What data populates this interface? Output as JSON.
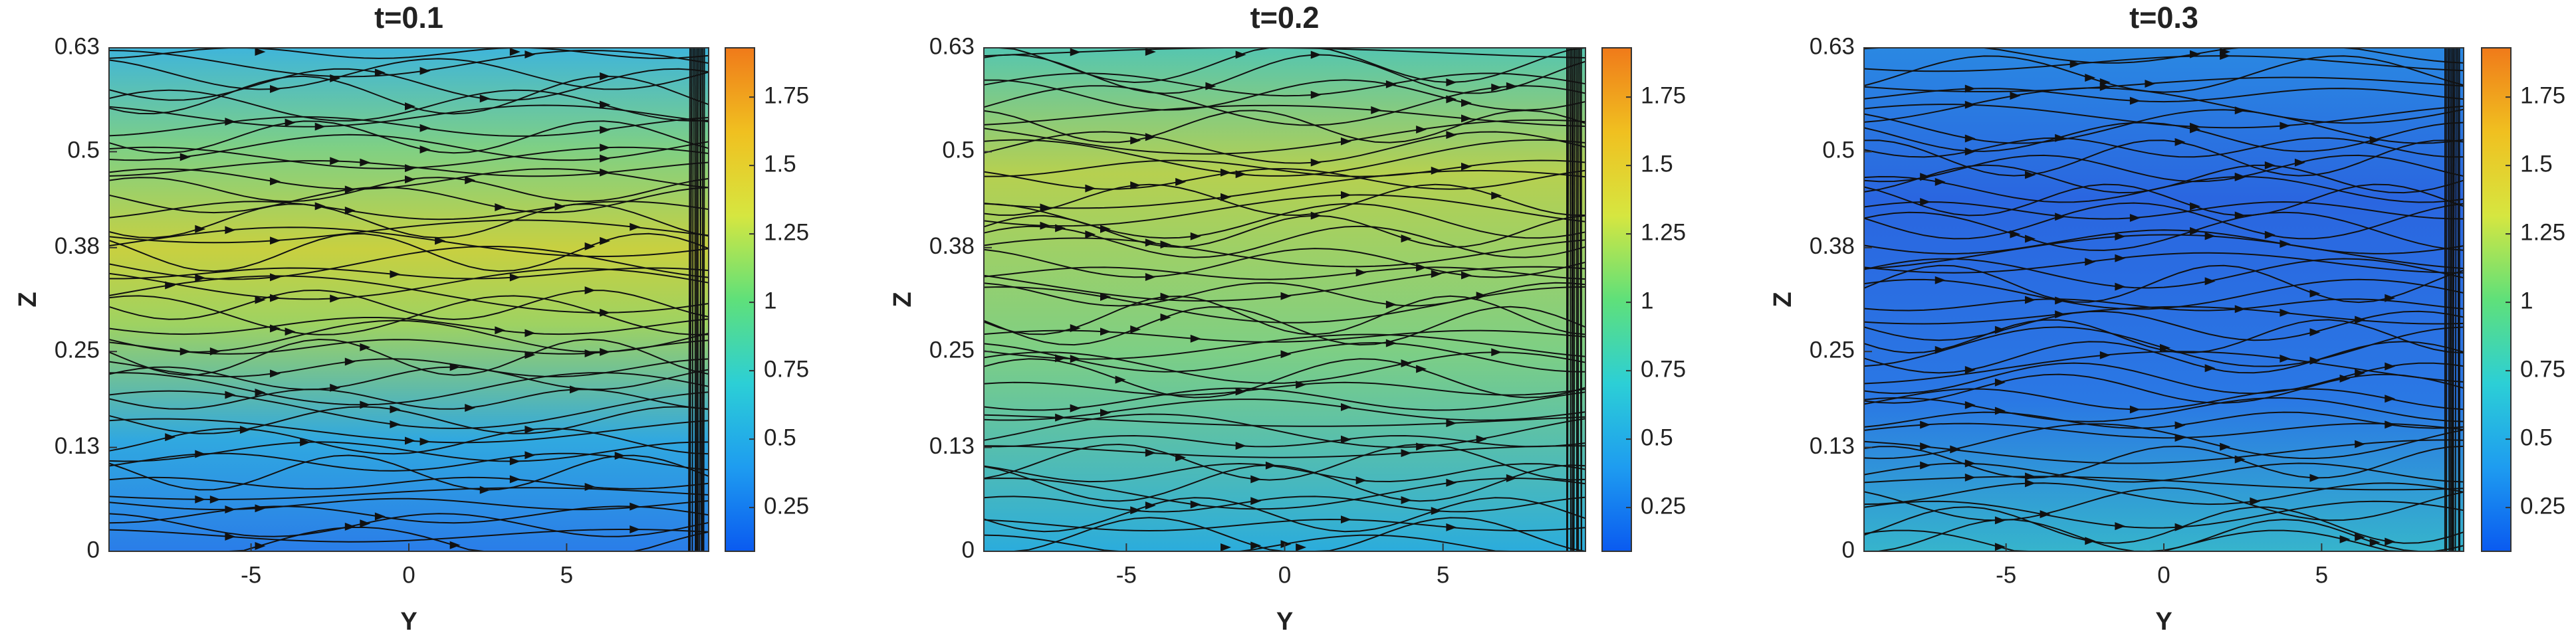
{
  "chart_data": [
    {
      "type": "streamline",
      "title": "t=0.1",
      "x_label": "Y",
      "y_label": "Z",
      "xlim": [
        -9.5,
        9.5
      ],
      "xticks": [
        -5,
        0,
        5
      ],
      "ylim": [
        0,
        0.63
      ],
      "yticks": [
        0,
        0.13,
        0.25,
        0.38,
        0.5,
        0.63
      ],
      "colorbar": {
        "lim": [
          0.09,
          1.93
        ],
        "ticks": [
          0.25,
          0.5,
          0.75,
          1,
          1.25,
          1.5,
          1.75
        ],
        "colormap": [
          "#0a5af0",
          "#1e9cf0",
          "#2ccfd6",
          "#5fe07a",
          "#d6e640",
          "#f0c020",
          "#f07a1a"
        ]
      }
    },
    {
      "type": "streamline",
      "title": "t=0.2",
      "x_label": "Y",
      "y_label": "Z",
      "xlim": [
        -9.5,
        9.5
      ],
      "xticks": [
        -5,
        0,
        5
      ],
      "ylim": [
        0,
        0.63
      ],
      "yticks": [
        0,
        0.13,
        0.25,
        0.38,
        0.5,
        0.63
      ],
      "colorbar": {
        "lim": [
          0.09,
          1.93
        ],
        "ticks": [
          0.25,
          0.5,
          0.75,
          1,
          1.25,
          1.5,
          1.75
        ],
        "colormap": [
          "#0a5af0",
          "#1e9cf0",
          "#2ccfd6",
          "#5fe07a",
          "#d6e640",
          "#f0c020",
          "#f07a1a"
        ]
      }
    },
    {
      "type": "streamline",
      "title": "t=0.3",
      "x_label": "Y",
      "y_label": "Z",
      "xlim": [
        -9.5,
        9.5
      ],
      "xticks": [
        -5,
        0,
        5
      ],
      "ylim": [
        0,
        0.63
      ],
      "yticks": [
        0,
        0.13,
        0.25,
        0.38,
        0.5,
        0.63
      ],
      "colorbar": {
        "lim": [
          0.09,
          1.93
        ],
        "ticks": [
          0.25,
          0.5,
          0.75,
          1,
          1.25,
          1.5,
          1.75
        ],
        "colormap": [
          "#0a5af0",
          "#1e9cf0",
          "#2ccfd6",
          "#5fe07a",
          "#d6e640",
          "#f0c020",
          "#f07a1a"
        ]
      }
    }
  ]
}
